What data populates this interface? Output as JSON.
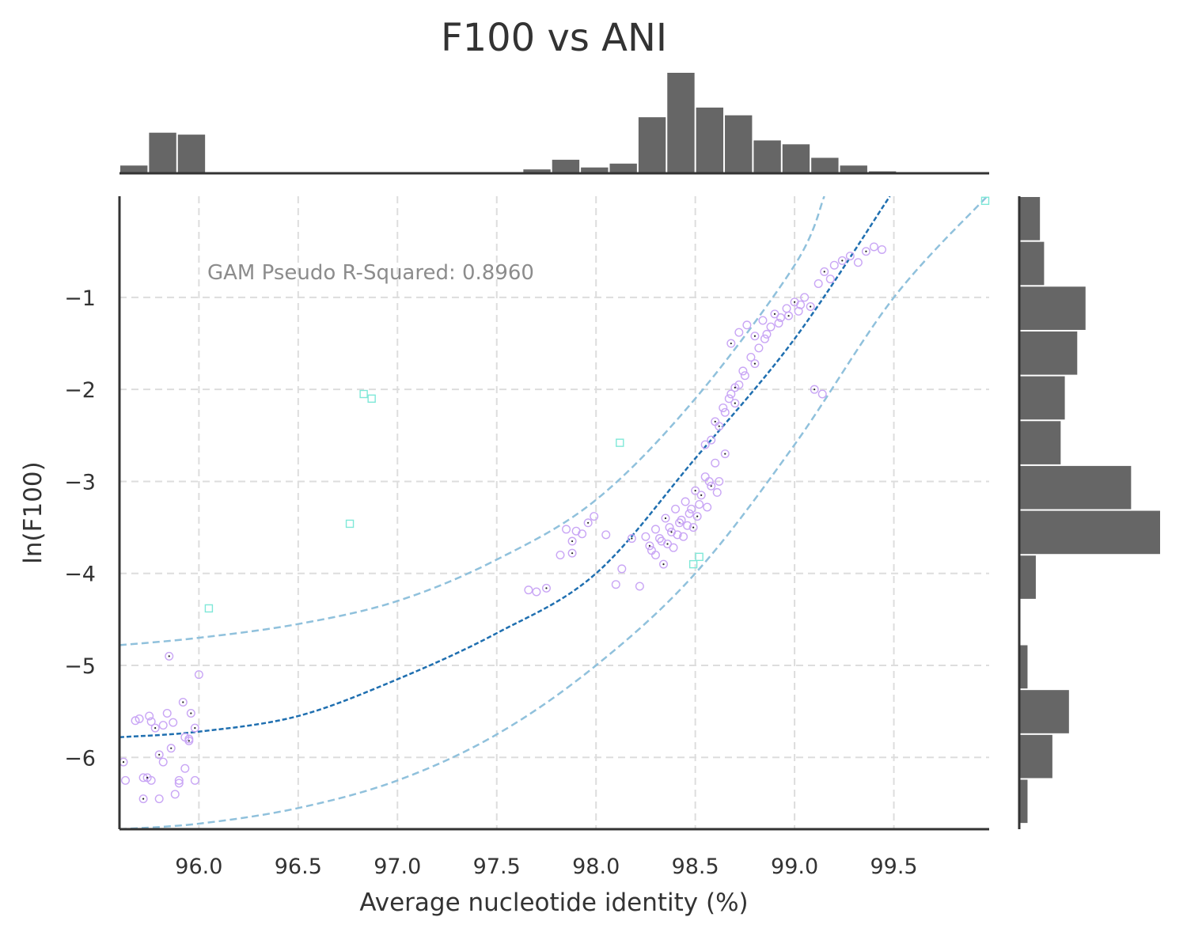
{
  "chart_data": {
    "type": "scatter",
    "title": "F100 vs ANI",
    "xlabel": "Average nucleotide identity (%)",
    "ylabel": "ln(F100)",
    "xlim": [
      95.6,
      99.98
    ],
    "ylim": [
      -6.78,
      0.1
    ],
    "x_ticks": [
      "96.0",
      "96.5",
      "97.0",
      "97.5",
      "98.0",
      "98.5",
      "99.0",
      "99.5"
    ],
    "y_ticks": [
      "−1",
      "−2",
      "−3",
      "−4",
      "−5",
      "−6"
    ],
    "grid": true,
    "annotation": "GAM Pseudo R-Squared: 0.8960",
    "colors": {
      "points": "#c9a6f5",
      "outliers": "#7fe8d8",
      "center_dot": "#222222",
      "fit_line": "#1f6fb0",
      "interval_line": "#90c1dc",
      "histogram": "#666666",
      "grid": "#dddddd",
      "axis": "#333333"
    },
    "gam_fit": {
      "x": [
        95.6,
        96.0,
        96.5,
        97.0,
        97.5,
        98.0,
        98.5,
        99.0,
        99.48
      ],
      "y": [
        -5.78,
        -5.72,
        -5.55,
        -5.15,
        -4.65,
        -4.0,
        -2.75,
        -1.45,
        0.1
      ]
    },
    "interval_upper": {
      "x": [
        95.6,
        96.0,
        96.5,
        97.0,
        97.5,
        98.0,
        98.5,
        99.0,
        99.15
      ],
      "y": [
        -4.78,
        -4.7,
        -4.55,
        -4.3,
        -3.85,
        -3.2,
        -2.1,
        -0.65,
        0.1
      ]
    },
    "interval_lower": {
      "x": [
        95.6,
        96.0,
        96.5,
        97.0,
        97.5,
        98.0,
        98.5,
        99.0,
        99.5,
        99.97
      ],
      "y": [
        -6.78,
        -6.72,
        -6.55,
        -6.25,
        -5.75,
        -5.0,
        -4.0,
        -2.6,
        -1.0,
        0.1
      ]
    },
    "outliers": {
      "x": [
        96.05,
        96.76,
        96.83,
        96.87,
        98.12,
        98.49,
        98.52,
        99.96
      ],
      "y": [
        -4.38,
        -3.46,
        -2.05,
        -2.1,
        -2.58,
        -3.9,
        -3.82,
        0.05
      ]
    },
    "points": {
      "x": [
        95.62,
        95.63,
        95.7,
        95.72,
        95.75,
        95.76,
        95.78,
        95.8,
        95.82,
        95.85,
        95.87,
        95.9,
        95.92,
        95.93,
        95.95,
        95.98,
        96.0,
        95.72,
        95.8,
        95.84,
        95.9,
        95.95,
        95.68,
        95.76,
        95.86,
        95.93,
        95.98,
        95.74,
        95.82,
        95.88,
        95.96,
        97.66,
        97.7,
        97.75,
        97.82,
        97.85,
        97.88,
        97.9,
        97.93,
        97.96,
        97.99,
        98.05,
        97.88,
        98.1,
        98.13,
        98.18,
        98.22,
        98.25,
        98.27,
        98.3,
        98.32,
        98.35,
        98.37,
        98.4,
        98.42,
        98.45,
        98.47,
        98.5,
        98.52,
        98.55,
        98.58,
        98.6,
        98.62,
        98.65,
        98.28,
        98.33,
        98.38,
        98.43,
        98.48,
        98.53,
        98.57,
        98.3,
        98.36,
        98.41,
        98.46,
        98.51,
        98.56,
        98.61,
        98.34,
        98.39,
        98.44,
        98.49,
        98.55,
        98.58,
        98.62,
        98.65,
        98.68,
        98.7,
        98.72,
        98.75,
        98.6,
        98.64,
        98.67,
        98.7,
        98.74,
        98.78,
        98.8,
        98.82,
        98.85,
        98.68,
        98.72,
        98.76,
        98.8,
        98.84,
        98.88,
        98.9,
        98.93,
        98.96,
        99.0,
        99.02,
        99.05,
        99.08,
        98.86,
        98.92,
        98.97,
        99.03,
        99.12,
        99.15,
        99.18,
        99.2,
        99.24,
        99.28,
        99.32,
        99.36,
        99.4,
        99.44,
        99.1,
        99.14
      ],
      "y": [
        -6.05,
        -6.25,
        -5.58,
        -6.45,
        -5.55,
        -6.25,
        -5.68,
        -6.45,
        -6.05,
        -4.9,
        -5.62,
        -6.28,
        -5.4,
        -6.12,
        -5.8,
        -5.68,
        -5.1,
        -6.22,
        -5.97,
        -5.52,
        -6.25,
        -5.82,
        -5.6,
        -5.61,
        -5.9,
        -5.78,
        -6.25,
        -6.22,
        -5.65,
        -6.4,
        -5.52,
        -4.18,
        -4.2,
        -4.16,
        -3.8,
        -3.52,
        -3.78,
        -3.54,
        -3.57,
        -3.45,
        -3.38,
        -3.58,
        -3.65,
        -4.12,
        -3.95,
        -3.62,
        -4.14,
        -3.6,
        -3.7,
        -3.52,
        -3.62,
        -3.4,
        -3.5,
        -3.3,
        -3.45,
        -3.22,
        -3.35,
        -3.1,
        -3.25,
        -2.95,
        -3.05,
        -2.8,
        -3.0,
        -2.7,
        -3.75,
        -3.65,
        -3.55,
        -3.42,
        -3.3,
        -3.15,
        -3.0,
        -3.8,
        -3.68,
        -3.58,
        -3.48,
        -3.38,
        -3.28,
        -3.12,
        -3.9,
        -3.72,
        -3.6,
        -3.5,
        -2.6,
        -2.55,
        -2.4,
        -2.25,
        -2.05,
        -2.15,
        -1.95,
        -1.85,
        -2.35,
        -2.2,
        -2.1,
        -1.98,
        -1.8,
        -1.65,
        -1.72,
        -1.55,
        -1.45,
        -1.5,
        -1.38,
        -1.3,
        -1.42,
        -1.25,
        -1.32,
        -1.18,
        -1.22,
        -1.12,
        -1.05,
        -1.15,
        -1.0,
        -1.1,
        -1.4,
        -1.28,
        -1.2,
        -1.08,
        -0.85,
        -0.72,
        -0.8,
        -0.65,
        -0.6,
        -0.55,
        -0.62,
        -0.5,
        -0.45,
        -0.48,
        -2.0,
        -2.05
      ]
    },
    "hist_x": {
      "bin_start": 95.6,
      "bin_width": 0.145,
      "counts": [
        4,
        21,
        20,
        0,
        0,
        0,
        0,
        0,
        0,
        0,
        0,
        0,
        0,
        0,
        2,
        7,
        3,
        5,
        29,
        52,
        34,
        30,
        17,
        15,
        8,
        4,
        1
      ]
    },
    "hist_y": {
      "bin_start": 0.1,
      "bin_width": -0.4872,
      "counts": [
        5,
        6,
        16,
        14,
        11,
        10,
        27,
        34,
        4,
        0,
        2,
        12,
        8,
        2
      ]
    }
  }
}
